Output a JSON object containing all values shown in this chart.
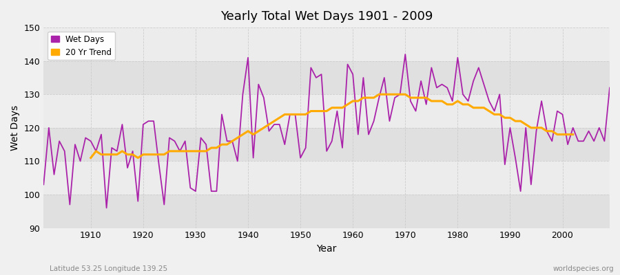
{
  "title": "Yearly Total Wet Days 1901 - 2009",
  "xlabel": "Year",
  "ylabel": "Wet Days",
  "subtitle_left": "Latitude 53.25 Longitude 139.25",
  "subtitle_right": "worldspecies.org",
  "ylim": [
    90,
    150
  ],
  "xlim": [
    1901,
    2009
  ],
  "legend_labels": [
    "Wet Days",
    "20 Yr Trend"
  ],
  "wet_days_color": "#aa22aa",
  "trend_color": "#ffaa00",
  "fig_bg_color": "#f0f0f0",
  "plot_bg_color": "#e8e8e8",
  "band_color_light": "#ececec",
  "band_color_dark": "#e0e0e0",
  "years": [
    1901,
    1902,
    1903,
    1904,
    1905,
    1906,
    1907,
    1908,
    1909,
    1910,
    1911,
    1912,
    1913,
    1914,
    1915,
    1916,
    1917,
    1918,
    1919,
    1920,
    1921,
    1922,
    1923,
    1924,
    1925,
    1926,
    1927,
    1928,
    1929,
    1930,
    1931,
    1932,
    1933,
    1934,
    1935,
    1936,
    1937,
    1938,
    1939,
    1940,
    1941,
    1942,
    1943,
    1944,
    1945,
    1946,
    1947,
    1948,
    1949,
    1950,
    1951,
    1952,
    1953,
    1954,
    1955,
    1956,
    1957,
    1958,
    1959,
    1960,
    1961,
    1962,
    1963,
    1964,
    1965,
    1966,
    1967,
    1968,
    1969,
    1970,
    1971,
    1972,
    1973,
    1974,
    1975,
    1976,
    1977,
    1978,
    1979,
    1980,
    1981,
    1982,
    1983,
    1984,
    1985,
    1986,
    1987,
    1988,
    1989,
    1990,
    1991,
    1992,
    1993,
    1994,
    1995,
    1996,
    1997,
    1998,
    1999,
    2000,
    2001,
    2002,
    2003,
    2004,
    2005,
    2006,
    2007,
    2008,
    2009
  ],
  "wet_days": [
    103,
    120,
    106,
    116,
    113,
    97,
    115,
    110,
    117,
    116,
    113,
    118,
    96,
    114,
    113,
    121,
    108,
    113,
    98,
    121,
    122,
    122,
    109,
    97,
    117,
    116,
    113,
    116,
    102,
    101,
    117,
    115,
    101,
    101,
    124,
    116,
    116,
    110,
    130,
    141,
    111,
    133,
    129,
    119,
    121,
    121,
    115,
    124,
    124,
    111,
    114,
    138,
    135,
    136,
    113,
    116,
    125,
    114,
    139,
    136,
    118,
    135,
    118,
    122,
    129,
    135,
    122,
    129,
    130,
    142,
    128,
    125,
    134,
    127,
    138,
    132,
    133,
    132,
    128,
    141,
    130,
    128,
    134,
    138,
    133,
    128,
    125,
    130,
    109,
    120,
    111,
    101,
    120,
    103,
    119,
    128,
    119,
    116,
    125,
    124,
    115,
    120,
    116,
    116,
    119,
    116,
    120,
    116,
    132
  ],
  "trend": [
    null,
    null,
    null,
    null,
    null,
    null,
    null,
    null,
    null,
    111,
    113,
    112,
    112,
    112,
    112,
    113,
    112,
    112,
    111,
    112,
    112,
    112,
    112,
    112,
    113,
    113,
    113,
    113,
    113,
    113,
    113,
    113,
    114,
    114,
    115,
    115,
    116,
    117,
    118,
    119,
    118,
    119,
    120,
    121,
    122,
    123,
    124,
    124,
    124,
    124,
    124,
    125,
    125,
    125,
    125,
    126,
    126,
    126,
    127,
    128,
    128,
    129,
    129,
    129,
    130,
    130,
    130,
    130,
    130,
    130,
    129,
    129,
    129,
    129,
    128,
    128,
    128,
    127,
    127,
    128,
    127,
    127,
    126,
    126,
    126,
    125,
    124,
    124,
    123,
    123,
    122,
    122,
    121,
    120,
    120,
    120,
    119,
    119,
    118,
    118,
    118,
    118,
    null,
    null,
    null,
    null,
    null,
    null,
    null
  ]
}
